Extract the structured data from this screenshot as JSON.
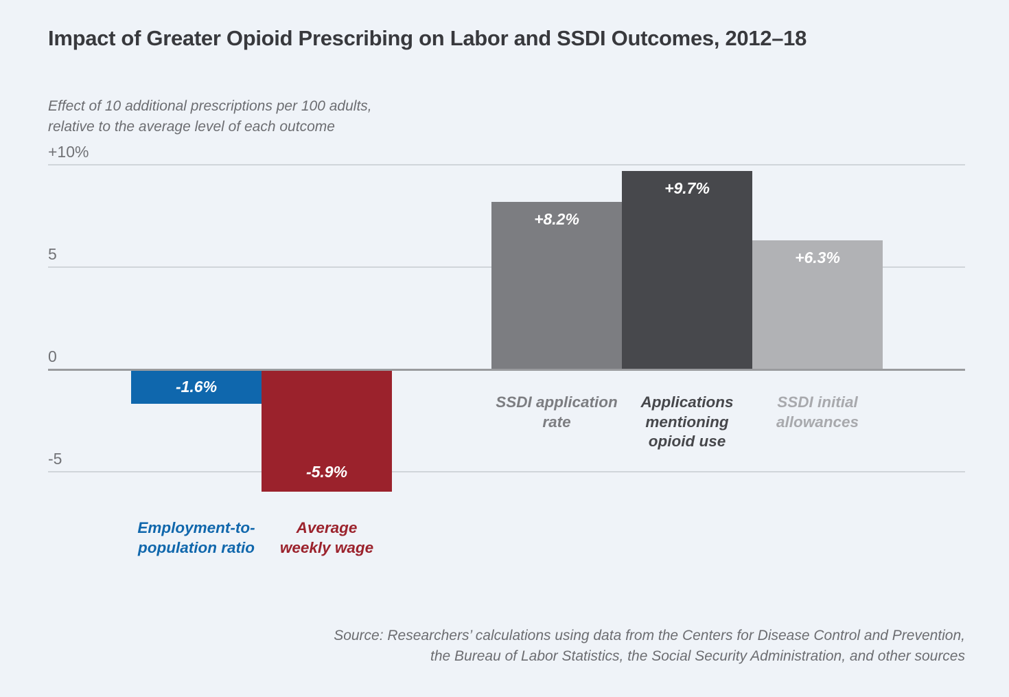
{
  "chart_data": {
    "type": "bar",
    "title": "Impact of Greater Opioid Prescribing on Labor and SSDI Outcomes, 2012–18",
    "subtitle": "Effect of 10 additional prescriptions per 100 adults,\nrelative to the average level of each outcome",
    "xlabel": "",
    "ylabel": "",
    "ylim": [
      -7.2,
      10.2
    ],
    "grid": "horizontal",
    "legend": "none",
    "yticks": [
      {
        "value": 10,
        "label": "+10%"
      },
      {
        "value": 5,
        "label": "5"
      },
      {
        "value": 0,
        "label": "0"
      },
      {
        "value": -5,
        "label": "-5"
      }
    ],
    "bars": [
      {
        "category": "Employment-to-\npopulation ratio",
        "value": -1.6,
        "value_label": "-1.6%",
        "color": "#0f67ad",
        "category_color": "#1067ac",
        "group": "labor"
      },
      {
        "category": "Average\nweekly wage",
        "value": -5.9,
        "value_label": "-5.9%",
        "color": "#9b222c",
        "category_color": "#9b222c",
        "group": "labor"
      },
      {
        "category": "SSDI application\nrate",
        "value": 8.2,
        "value_label": "+8.2%",
        "color": "#7c7d81",
        "category_color": "#7c7d81",
        "group": "ssdi"
      },
      {
        "category": "Applications\nmentioning\nopioid use",
        "value": 9.7,
        "value_label": "+9.7%",
        "color": "#47484c",
        "category_color": "#46474b",
        "group": "ssdi"
      },
      {
        "category": "SSDI initial\nallowances",
        "value": 6.3,
        "value_label": "+6.3%",
        "color": "#b1b2b5",
        "category_color": "#a8a9ad",
        "group": "ssdi"
      }
    ],
    "source": "Source: Researchers’ calculations using data from the Centers for Disease Control and Prevention,\nthe Bureau of Labor Statistics, the Social Security Administration, and other sources",
    "colors": {
      "background": "#eff3f8",
      "gridline": "#d0d5da",
      "zero_line": "#9a9b9e",
      "axis_label": "#717276",
      "title": "#38393d",
      "subtitle": "#6c6d71",
      "value_label": "#ffffff"
    }
  }
}
